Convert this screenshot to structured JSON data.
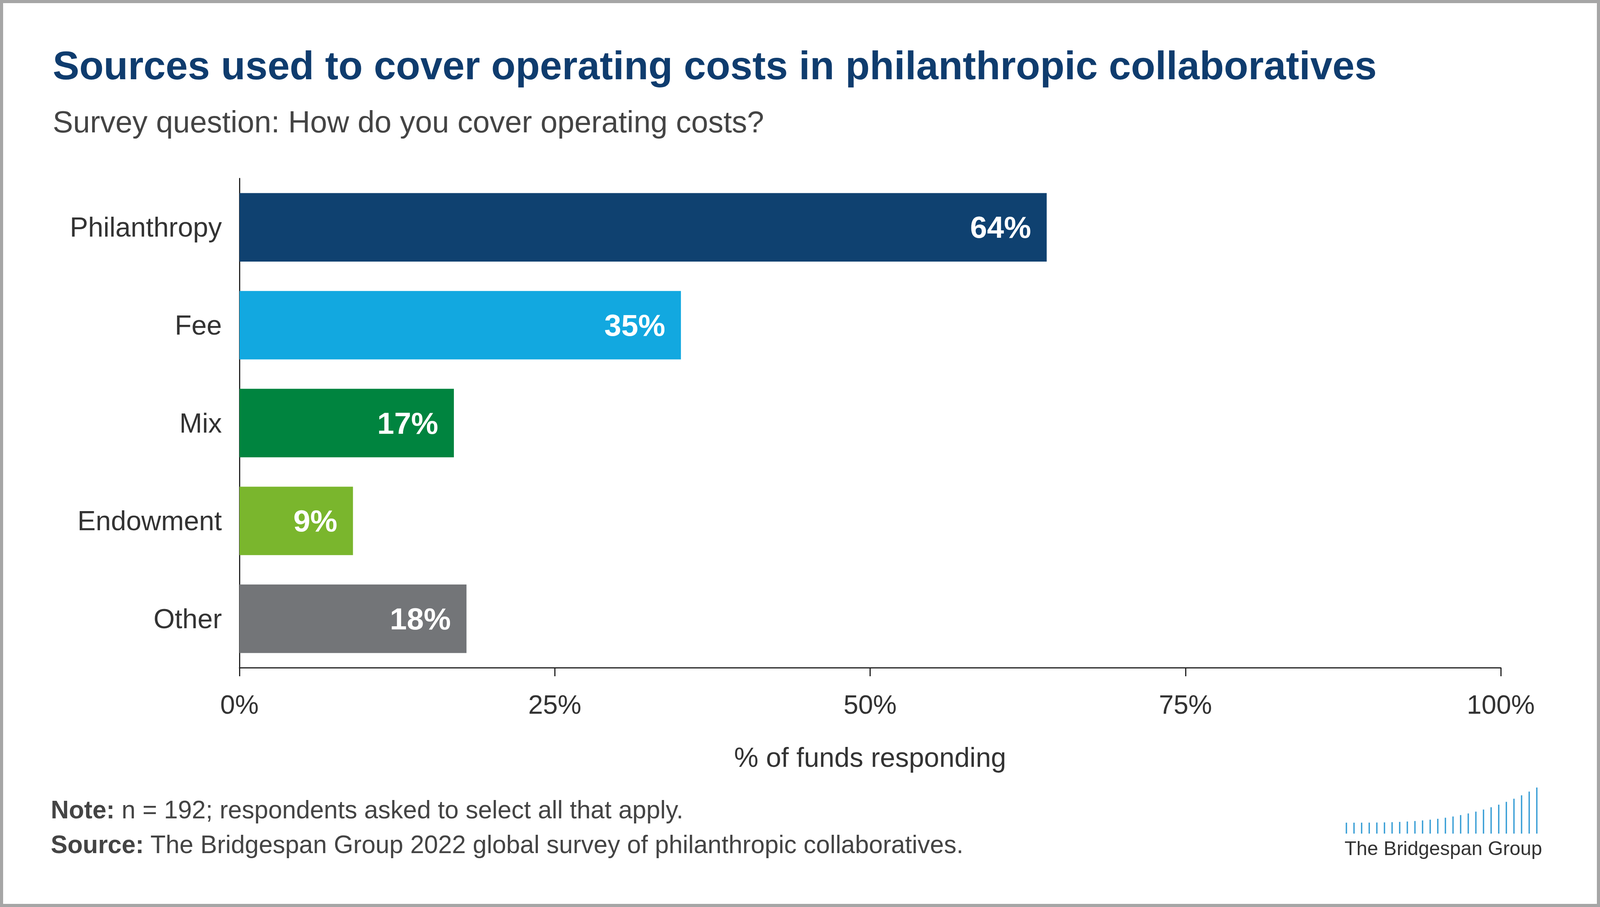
{
  "chart_data": {
    "type": "bar",
    "title": "Sources used to cover operating costs in philanthropic collaboratives",
    "subtitle": "Survey question: How do you cover operating costs?",
    "x_label": "% of funds responding",
    "categories": [
      "Philanthropy",
      "Fee",
      "Mix",
      "Endowment",
      "Other"
    ],
    "values": [
      64,
      35,
      17,
      9,
      18
    ],
    "value_labels": [
      "64%",
      "35%",
      "17%",
      "9%",
      "18%"
    ],
    "colors": [
      "#0f4170",
      "#12a8e0",
      "#00843f",
      "#7ab62d",
      "#737578"
    ],
    "xlim": [
      0,
      100
    ],
    "xticks": [
      {
        "value": 0,
        "label": "0%"
      },
      {
        "value": 25,
        "label": "25%"
      },
      {
        "value": 50,
        "label": "50%"
      },
      {
        "value": 75,
        "label": "75%"
      },
      {
        "value": 100,
        "label": "100%"
      }
    ],
    "orientation": "horizontal",
    "data_labels": true,
    "grid": false,
    "annotations": [
      "Note: n = 192; respondents asked to select all that apply.",
      "Source: The Bridgespan Group 2022 global survey of philanthropic collaboratives.",
      "The Bridgespan Group"
    ]
  }
}
